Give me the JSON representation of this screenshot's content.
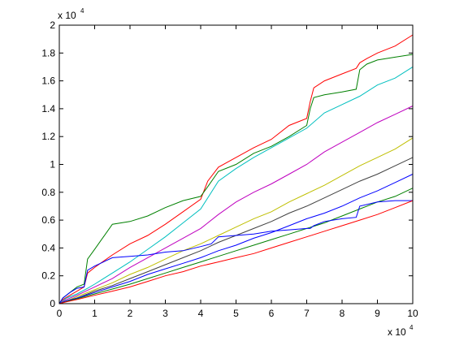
{
  "chart_data": {
    "type": "line",
    "title": "",
    "xlabel": "",
    "ylabel": "",
    "x_multiplier_label": "x 10",
    "x_multiplier_exp": "4",
    "y_multiplier_label": "x 10",
    "y_multiplier_exp": "4",
    "xlim": [
      0,
      100000
    ],
    "ylim": [
      0,
      20000
    ],
    "x_tick_labels": [
      "0",
      "1",
      "2",
      "3",
      "4",
      "5",
      "6",
      "7",
      "8",
      "9",
      "10"
    ],
    "y_tick_labels": [
      "0",
      "0.2",
      "0.4",
      "0.6",
      "0.8",
      "1",
      "1.2",
      "1.4",
      "1.6",
      "1.8",
      "2"
    ],
    "grid": false,
    "legend": "none",
    "series": [
      {
        "color": "#ff0000",
        "x": [
          0,
          1000,
          3000,
          5000,
          7000,
          8000,
          10000,
          15000,
          20000,
          25000,
          30000,
          35000,
          40000,
          42000,
          45000,
          50000,
          55000,
          60000,
          65000,
          70000,
          71000,
          72000,
          75000,
          80000,
          84000,
          85000,
          87000,
          90000,
          95000,
          100000
        ],
        "y": [
          0,
          300,
          600,
          900,
          1200,
          2200,
          2600,
          3500,
          4300,
          4900,
          5700,
          6600,
          7500,
          8800,
          9800,
          10500,
          11200,
          11800,
          12800,
          13300,
          14500,
          15500,
          16000,
          16500,
          16900,
          17300,
          17600,
          18000,
          18500,
          19300
        ]
      },
      {
        "color": "#008000",
        "x": [
          0,
          1000,
          3000,
          5000,
          7000,
          8000,
          10000,
          15000,
          20000,
          25000,
          30000,
          35000,
          40000,
          42000,
          45000,
          50000,
          55000,
          60000,
          65000,
          70000,
          71000,
          72000,
          75000,
          80000,
          84000,
          85000,
          87000,
          90000,
          95000,
          100000
        ],
        "y": [
          0,
          400,
          800,
          1200,
          1400,
          3200,
          3900,
          5700,
          5900,
          6300,
          6900,
          7400,
          7700,
          8400,
          9500,
          10000,
          10800,
          11300,
          12000,
          12800,
          14000,
          14800,
          15000,
          15200,
          15400,
          16800,
          17200,
          17500,
          17700,
          17900
        ]
      },
      {
        "color": "#00bfbf",
        "x": [
          0,
          2000,
          5000,
          8000,
          10000,
          15000,
          20000,
          25000,
          30000,
          35000,
          40000,
          45000,
          50000,
          55000,
          60000,
          65000,
          70000,
          75000,
          80000,
          85000,
          90000,
          95000,
          100000
        ],
        "y": [
          0,
          400,
          700,
          1100,
          1400,
          2200,
          3000,
          3900,
          4800,
          5800,
          6800,
          8800,
          9700,
          10500,
          11200,
          11900,
          12600,
          13700,
          14300,
          14900,
          15700,
          16200,
          17000
        ]
      },
      {
        "color": "#bf00bf",
        "x": [
          0,
          2000,
          5000,
          10000,
          15000,
          20000,
          25000,
          30000,
          35000,
          40000,
          45000,
          50000,
          55000,
          60000,
          65000,
          70000,
          75000,
          80000,
          85000,
          90000,
          95000,
          100000
        ],
        "y": [
          0,
          300,
          600,
          1200,
          1800,
          2600,
          3300,
          4000,
          4700,
          5400,
          6400,
          7300,
          8000,
          8600,
          9300,
          10000,
          10900,
          11600,
          12300,
          13000,
          13600,
          14200
        ]
      },
      {
        "color": "#bfbf00",
        "x": [
          0,
          2000,
          5000,
          10000,
          15000,
          20000,
          25000,
          30000,
          35000,
          40000,
          45000,
          50000,
          55000,
          60000,
          65000,
          70000,
          75000,
          80000,
          85000,
          90000,
          95000,
          100000
        ],
        "y": [
          0,
          200,
          500,
          1000,
          1500,
          2100,
          2600,
          3200,
          3800,
          4300,
          4900,
          5500,
          6100,
          6600,
          7300,
          7900,
          8500,
          9200,
          9900,
          10500,
          11100,
          11900
        ]
      },
      {
        "color": "#404040",
        "x": [
          0,
          2000,
          5000,
          10000,
          15000,
          20000,
          25000,
          30000,
          35000,
          40000,
          45000,
          50000,
          55000,
          60000,
          65000,
          70000,
          75000,
          80000,
          85000,
          90000,
          95000,
          100000
        ],
        "y": [
          0,
          200,
          400,
          900,
          1300,
          1800,
          2300,
          2800,
          3300,
          3800,
          4400,
          4900,
          5400,
          5900,
          6500,
          7000,
          7600,
          8200,
          8800,
          9300,
          9900,
          10500
        ]
      },
      {
        "color": "#0000ff",
        "x": [
          0,
          2000,
          5000,
          10000,
          15000,
          20000,
          25000,
          30000,
          35000,
          40000,
          45000,
          50000,
          55000,
          60000,
          65000,
          70000,
          75000,
          80000,
          85000,
          90000,
          95000,
          100000
        ],
        "y": [
          0,
          200,
          400,
          800,
          1200,
          1600,
          2100,
          2500,
          2900,
          3300,
          3800,
          4200,
          4700,
          5100,
          5600,
          6100,
          6500,
          7000,
          7600,
          8100,
          8700,
          9300
        ]
      },
      {
        "color": "#008000",
        "x": [
          0,
          2000,
          5000,
          10000,
          15000,
          20000,
          25000,
          30000,
          35000,
          40000,
          45000,
          50000,
          55000,
          60000,
          65000,
          70000,
          75000,
          80000,
          85000,
          90000,
          95000,
          100000
        ],
        "y": [
          0,
          150,
          350,
          700,
          1050,
          1400,
          1800,
          2200,
          2600,
          3000,
          3400,
          3800,
          4200,
          4600,
          5000,
          5400,
          5800,
          6300,
          6800,
          7300,
          7700,
          8300
        ]
      },
      {
        "color": "#0000ff",
        "x": [
          0,
          1000,
          3000,
          5000,
          7000,
          8000,
          10000,
          15000,
          20000,
          25000,
          30000,
          35000,
          40000,
          43000,
          45000,
          50000,
          55000,
          60000,
          65000,
          70000,
          71000,
          72000,
          75000,
          80000,
          84000,
          85000,
          90000,
          95000,
          100000
        ],
        "y": [
          0,
          400,
          800,
          1100,
          1200,
          2400,
          2700,
          3300,
          3400,
          3500,
          3700,
          3800,
          4100,
          4300,
          4800,
          4900,
          5000,
          5200,
          5300,
          5400,
          5400,
          5600,
          5900,
          6100,
          6200,
          7000,
          7300,
          7400,
          7400
        ]
      },
      {
        "color": "#ff0000",
        "x": [
          0,
          2000,
          5000,
          10000,
          15000,
          20000,
          25000,
          30000,
          35000,
          40000,
          45000,
          50000,
          55000,
          60000,
          65000,
          70000,
          75000,
          80000,
          85000,
          90000,
          95000,
          100000
        ],
        "y": [
          0,
          130,
          300,
          600,
          900,
          1200,
          1600,
          2000,
          2300,
          2700,
          3000,
          3300,
          3600,
          4000,
          4400,
          4800,
          5200,
          5600,
          6000,
          6400,
          6900,
          7400
        ]
      }
    ]
  }
}
